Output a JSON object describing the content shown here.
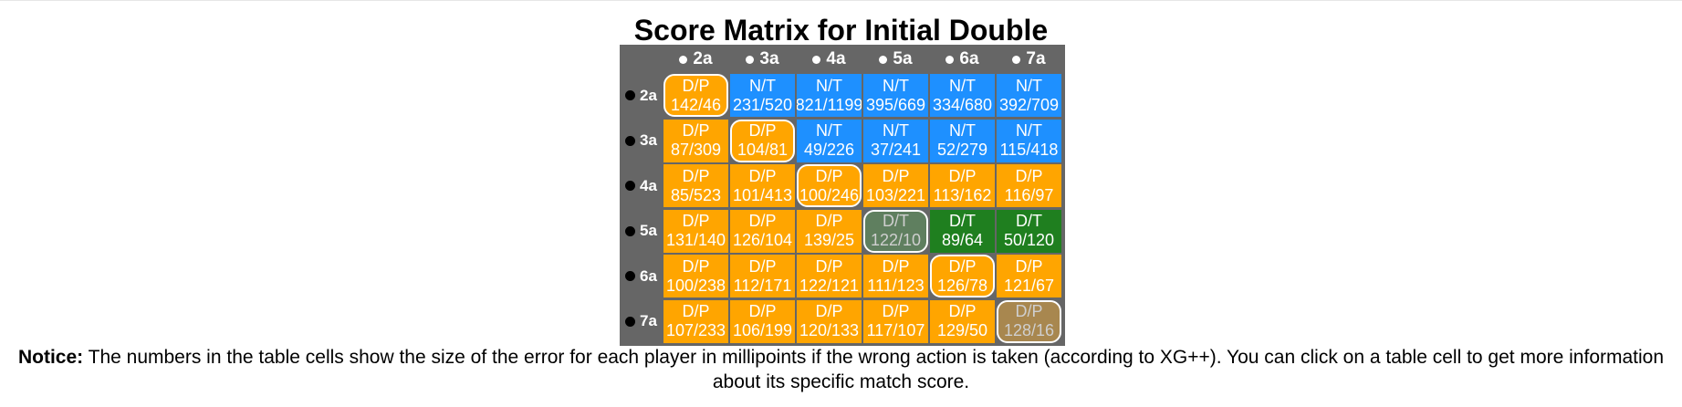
{
  "title": "Score Matrix for Initial Double",
  "columns": [
    "2a",
    "3a",
    "4a",
    "5a",
    "6a",
    "7a"
  ],
  "rows": [
    {
      "label": "2a",
      "cells": [
        {
          "action": "D/P",
          "value": "142/46",
          "color": "#ffa500",
          "highlight": true,
          "dim": false
        },
        {
          "action": "N/T",
          "value": "231/520",
          "color": "#1e90ff",
          "highlight": false,
          "dim": false
        },
        {
          "action": "N/T",
          "value": "821/1199",
          "color": "#1e90ff",
          "highlight": false,
          "dim": false
        },
        {
          "action": "N/T",
          "value": "395/669",
          "color": "#1e90ff",
          "highlight": false,
          "dim": false
        },
        {
          "action": "N/T",
          "value": "334/680",
          "color": "#1e90ff",
          "highlight": false,
          "dim": false
        },
        {
          "action": "N/T",
          "value": "392/709",
          "color": "#1e90ff",
          "highlight": false,
          "dim": false
        }
      ]
    },
    {
      "label": "3a",
      "cells": [
        {
          "action": "D/P",
          "value": "87/309",
          "color": "#ffa500",
          "highlight": false,
          "dim": false
        },
        {
          "action": "D/P",
          "value": "104/81",
          "color": "#ffa500",
          "highlight": true,
          "dim": false
        },
        {
          "action": "N/T",
          "value": "49/226",
          "color": "#1e90ff",
          "highlight": false,
          "dim": false
        },
        {
          "action": "N/T",
          "value": "37/241",
          "color": "#1e90ff",
          "highlight": false,
          "dim": false
        },
        {
          "action": "N/T",
          "value": "52/279",
          "color": "#1e90ff",
          "highlight": false,
          "dim": false
        },
        {
          "action": "N/T",
          "value": "115/418",
          "color": "#1e90ff",
          "highlight": false,
          "dim": false
        }
      ]
    },
    {
      "label": "4a",
      "cells": [
        {
          "action": "D/P",
          "value": "85/523",
          "color": "#ffa500",
          "highlight": false,
          "dim": false
        },
        {
          "action": "D/P",
          "value": "101/413",
          "color": "#ffa500",
          "highlight": false,
          "dim": false
        },
        {
          "action": "D/P",
          "value": "100/246",
          "color": "#ffa500",
          "highlight": true,
          "dim": false
        },
        {
          "action": "D/P",
          "value": "103/221",
          "color": "#ffa500",
          "highlight": false,
          "dim": false
        },
        {
          "action": "D/P",
          "value": "113/162",
          "color": "#ffa500",
          "highlight": false,
          "dim": false
        },
        {
          "action": "D/P",
          "value": "116/97",
          "color": "#ffa500",
          "highlight": false,
          "dim": false
        }
      ]
    },
    {
      "label": "5a",
      "cells": [
        {
          "action": "D/P",
          "value": "131/140",
          "color": "#ffa500",
          "highlight": false,
          "dim": false
        },
        {
          "action": "D/P",
          "value": "126/104",
          "color": "#ffa500",
          "highlight": false,
          "dim": false
        },
        {
          "action": "D/P",
          "value": "139/25",
          "color": "#ffa500",
          "highlight": false,
          "dim": false
        },
        {
          "action": "D/T",
          "value": "122/10",
          "color": "#5f7f5f",
          "highlight": true,
          "dim": true
        },
        {
          "action": "D/T",
          "value": "89/64",
          "color": "#1f7f1f",
          "highlight": false,
          "dim": false
        },
        {
          "action": "D/T",
          "value": "50/120",
          "color": "#1f7f1f",
          "highlight": false,
          "dim": false
        }
      ]
    },
    {
      "label": "6a",
      "cells": [
        {
          "action": "D/P",
          "value": "100/238",
          "color": "#ffa500",
          "highlight": false,
          "dim": false
        },
        {
          "action": "D/P",
          "value": "112/171",
          "color": "#ffa500",
          "highlight": false,
          "dim": false
        },
        {
          "action": "D/P",
          "value": "122/121",
          "color": "#ffa500",
          "highlight": false,
          "dim": false
        },
        {
          "action": "D/P",
          "value": "111/123",
          "color": "#ffa500",
          "highlight": false,
          "dim": false
        },
        {
          "action": "D/P",
          "value": "126/78",
          "color": "#ffa500",
          "highlight": true,
          "dim": false
        },
        {
          "action": "D/P",
          "value": "121/67",
          "color": "#ffa500",
          "highlight": false,
          "dim": false
        }
      ]
    },
    {
      "label": "7a",
      "cells": [
        {
          "action": "D/P",
          "value": "107/233",
          "color": "#ffa500",
          "highlight": false,
          "dim": false
        },
        {
          "action": "D/P",
          "value": "106/199",
          "color": "#ffa500",
          "highlight": false,
          "dim": false
        },
        {
          "action": "D/P",
          "value": "120/133",
          "color": "#ffa500",
          "highlight": false,
          "dim": false
        },
        {
          "action": "D/P",
          "value": "117/107",
          "color": "#ffa500",
          "highlight": false,
          "dim": false
        },
        {
          "action": "D/P",
          "value": "129/50",
          "color": "#ffa500",
          "highlight": false,
          "dim": false
        },
        {
          "action": "D/P",
          "value": "128/16",
          "color": "#a8874f",
          "highlight": true,
          "dim": true
        }
      ]
    }
  ],
  "notice": {
    "label": "Notice:",
    "text": " The numbers in the table cells show the size of the error for each player in millipoints if the wrong action is taken (according to XG++). You can click on a table cell to get more information about its specific match score."
  }
}
